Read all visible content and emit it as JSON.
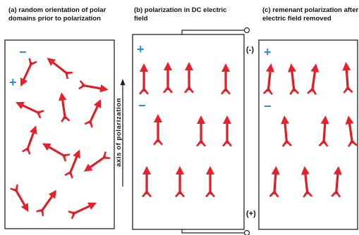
{
  "captions": {
    "a": "(a) random orientation of polar\ndomains prior to polarization",
    "b": "(b) polarization in DC electric field",
    "c": "(c) remenant polarization after\n  electric field removed"
  },
  "axis_label": "axis of polarization",
  "electrodes": {
    "negative": "(-)",
    "positive": "(+)"
  },
  "charge_signs": {
    "minus": "−",
    "plus": "+"
  },
  "colors": {
    "arrow": "#e8202a",
    "arrow_shadow": "#b01018",
    "border": "#222222",
    "charge": "#2a8fd8"
  }
}
